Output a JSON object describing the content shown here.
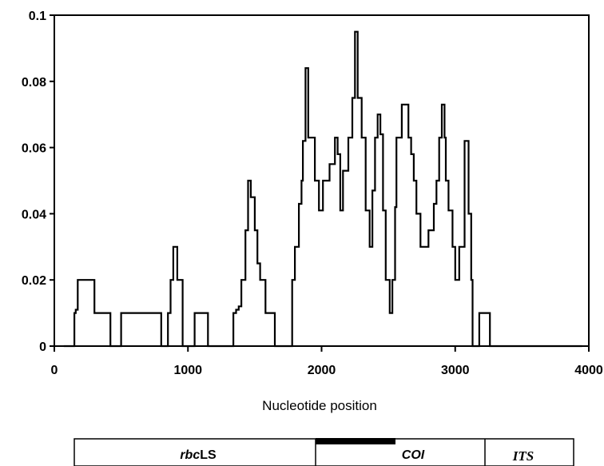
{
  "chart_data": {
    "type": "line",
    "title": "",
    "xlabel": "Nucleotide position",
    "ylabel": "",
    "xlim": [
      0,
      4000
    ],
    "ylim": [
      0,
      0.1
    ],
    "x_ticks": [
      0,
      1000,
      2000,
      3000,
      4000
    ],
    "x_tick_labels": [
      "0",
      "1000",
      "2000",
      "3000",
      "4000"
    ],
    "y_ticks": [
      0,
      0.02,
      0.04,
      0.06,
      0.08,
      0.1
    ],
    "y_tick_labels": [
      "0",
      "0.02",
      "0.04",
      "0.06",
      "0.08",
      "0.1"
    ],
    "grid": false,
    "series": [
      {
        "x": [
          70,
          100,
          150,
          160,
          175,
          200,
          300,
          420,
          500,
          800,
          850,
          870,
          890,
          920,
          960,
          980,
          1000,
          1050,
          1080,
          1100,
          1150,
          1200,
          1280,
          1340,
          1360,
          1380,
          1400,
          1430,
          1450,
          1470,
          1500,
          1520,
          1540,
          1580,
          1650,
          1780,
          1800,
          1830,
          1850,
          1860,
          1880,
          1900,
          1950,
          1980,
          2010,
          2060,
          2100,
          2120,
          2140,
          2160,
          2200,
          2230,
          2250,
          2270,
          2300,
          2330,
          2360,
          2380,
          2400,
          2420,
          2440,
          2460,
          2480,
          2510,
          2530,
          2550,
          2560,
          2600,
          2650,
          2670,
          2690,
          2710,
          2740,
          2800,
          2840,
          2860,
          2880,
          2900,
          2920,
          2930,
          2950,
          2980,
          3000,
          3030,
          3070,
          3100,
          3120,
          3130,
          3150,
          3180,
          3220,
          3260,
          3280,
          3300,
          3350,
          3400,
          3500,
          3520,
          3600,
          3700,
          3800,
          3950
        ],
        "y": [
          0.0,
          0.0,
          0.01,
          0.011,
          0.02,
          0.02,
          0.01,
          0.0,
          0.01,
          0.0,
          0.01,
          0.02,
          0.03,
          0.02,
          0.0,
          0.0,
          0.0,
          0.01,
          0.01,
          0.01,
          0.0,
          0.0,
          0.0,
          0.01,
          0.011,
          0.012,
          0.02,
          0.035,
          0.05,
          0.045,
          0.035,
          0.025,
          0.02,
          0.01,
          0.0,
          0.02,
          0.03,
          0.043,
          0.05,
          0.062,
          0.084,
          0.063,
          0.05,
          0.041,
          0.05,
          0.055,
          0.063,
          0.058,
          0.041,
          0.053,
          0.063,
          0.075,
          0.095,
          0.075,
          0.063,
          0.041,
          0.03,
          0.047,
          0.063,
          0.07,
          0.064,
          0.041,
          0.02,
          0.01,
          0.02,
          0.042,
          0.063,
          0.073,
          0.063,
          0.058,
          0.05,
          0.04,
          0.03,
          0.035,
          0.043,
          0.05,
          0.063,
          0.073,
          0.063,
          0.05,
          0.041,
          0.03,
          0.02,
          0.03,
          0.062,
          0.04,
          0.02,
          0.0,
          0.0,
          0.01,
          0.01,
          0.0,
          0.0,
          0.0,
          0.0,
          0.0,
          0.0,
          0.0,
          0.0,
          0.0,
          0.0,
          0.0
        ]
      }
    ]
  },
  "gene_regions": [
    {
      "label": "rbcLS",
      "label_italic": "rbc",
      "label_plain": "LS",
      "start": 0.0,
      "end": 0.51
    },
    {
      "label": "COI",
      "start": 0.51,
      "end": 0.81
    },
    {
      "label": "ITS",
      "start": 0.81,
      "end": 1.0
    }
  ]
}
